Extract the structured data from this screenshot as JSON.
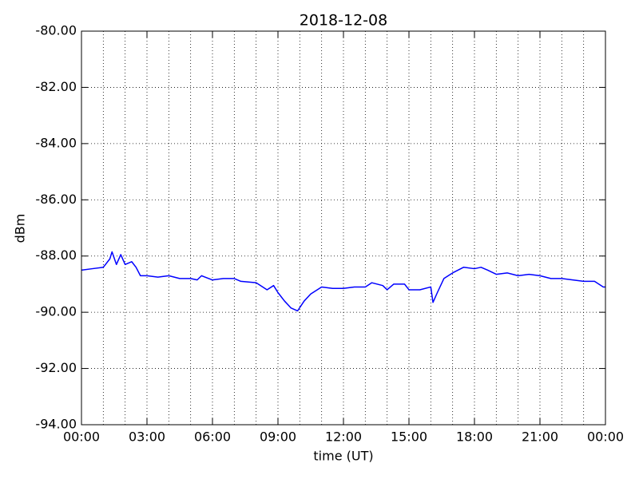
{
  "chart_data": {
    "type": "line",
    "title": "2018-12-08",
    "xlabel": "time (UT)",
    "ylabel": "dBm",
    "x": [
      0,
      0.5,
      1.0,
      1.3,
      1.4,
      1.6,
      1.8,
      2.0,
      2.3,
      2.5,
      2.7,
      3.0,
      3.5,
      4.0,
      4.5,
      5.0,
      5.3,
      5.5,
      6.0,
      6.5,
      7.0,
      7.3,
      8.0,
      8.5,
      8.8,
      9.0,
      9.3,
      9.6,
      9.9,
      10.2,
      10.5,
      11.0,
      11.5,
      12.0,
      12.5,
      13.0,
      13.3,
      13.8,
      14.0,
      14.3,
      14.8,
      15.0,
      15.5,
      16.0,
      16.1,
      16.3,
      16.6,
      17.0,
      17.5,
      18.0,
      18.3,
      18.6,
      19.0,
      19.5,
      20.0,
      20.5,
      21.0,
      21.5,
      22.0,
      22.5,
      23.0,
      23.5,
      23.9,
      24.0
    ],
    "series": [
      {
        "name": "dBm",
        "color": "#0000ff",
        "values": [
          -88.5,
          -88.45,
          -88.4,
          -88.1,
          -87.85,
          -88.3,
          -87.95,
          -88.3,
          -88.2,
          -88.4,
          -88.7,
          -88.7,
          -88.75,
          -88.7,
          -88.8,
          -88.8,
          -88.85,
          -88.7,
          -88.85,
          -88.8,
          -88.8,
          -88.9,
          -88.95,
          -89.2,
          -89.05,
          -89.3,
          -89.6,
          -89.85,
          -89.95,
          -89.6,
          -89.35,
          -89.1,
          -89.15,
          -89.15,
          -89.1,
          -89.1,
          -88.95,
          -89.05,
          -89.2,
          -89.0,
          -89.0,
          -89.2,
          -89.2,
          -89.1,
          -89.65,
          -89.3,
          -88.8,
          -88.6,
          -88.4,
          -88.45,
          -88.4,
          -88.5,
          -88.65,
          -88.6,
          -88.7,
          -88.65,
          -88.7,
          -88.8,
          -88.8,
          -88.85,
          -88.9,
          -88.9,
          -89.1,
          -89.1
        ]
      }
    ],
    "xlim": [
      0,
      24
    ],
    "xticks": [
      {
        "value": 0,
        "label": "00:00"
      },
      {
        "value": 3,
        "label": "03:00"
      },
      {
        "value": 6,
        "label": "06:00"
      },
      {
        "value": 9,
        "label": "09:00"
      },
      {
        "value": 12,
        "label": "12:00"
      },
      {
        "value": 15,
        "label": "15:00"
      },
      {
        "value": 18,
        "label": "18:00"
      },
      {
        "value": 21,
        "label": "21:00"
      },
      {
        "value": 24,
        "label": "00:00"
      }
    ],
    "xgrid": [
      1,
      2,
      3,
      4,
      5,
      6,
      7,
      8,
      9,
      10,
      11,
      12,
      13,
      14,
      15,
      16,
      17,
      18,
      19,
      20,
      21,
      22,
      23
    ],
    "ylim": [
      -94,
      -80
    ],
    "yticks": [
      {
        "value": -94,
        "label": "-94.00"
      },
      {
        "value": -92,
        "label": "-92.00"
      },
      {
        "value": -90,
        "label": "-90.00"
      },
      {
        "value": -88,
        "label": "-88.00"
      },
      {
        "value": -86,
        "label": "-86.00"
      },
      {
        "value": -84,
        "label": "-84.00"
      },
      {
        "value": -82,
        "label": "-82.00"
      },
      {
        "value": -80,
        "label": "-80.00"
      }
    ],
    "grid": true
  }
}
